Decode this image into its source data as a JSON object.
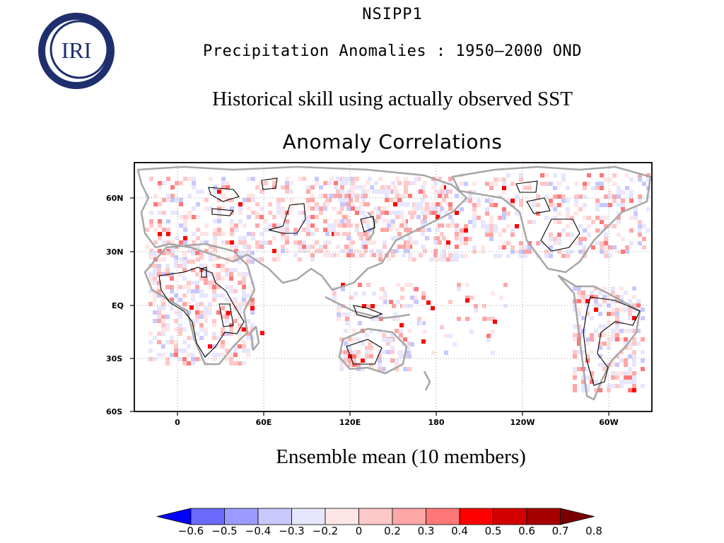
{
  "logo": {
    "text": "IRI"
  },
  "header": {
    "title_line1": "NSIPP1",
    "title_line2": "Precipitation Anomalies : 1950—2000 OND",
    "subtitle": "Historical skill using actually observed SST",
    "map_title": "Anomaly Correlations",
    "caption": "Ensemble mean (10 members)"
  },
  "map": {
    "y_ticks": [
      "60N",
      "30N",
      "EQ",
      "30S",
      "60S"
    ],
    "x_ticks": [
      "0",
      "60E",
      "120E",
      "180",
      "120W",
      "60W"
    ],
    "grid": true,
    "colors": {
      "land_outline": "#a6a6a6",
      "contour": "#000000",
      "frame": "#000000"
    }
  },
  "colorbar": {
    "labels": [
      "−0.6",
      "−0.5",
      "−0.4",
      "−0.3",
      "−0.2",
      "0",
      "0.2",
      "0.3",
      "0.4",
      "0.5",
      "0.6",
      "0.7",
      "0.8"
    ],
    "colors": [
      "#0000ff",
      "#6a6aff",
      "#9b9bff",
      "#c8c8ff",
      "#e6e6ff",
      "#ffe6e6",
      "#ffc8c8",
      "#ffa6a6",
      "#ff7878",
      "#ff0000",
      "#d20000",
      "#a60000",
      "#7a0000"
    ],
    "under_color": "#0000ff",
    "over_color": "#7a0000"
  }
}
